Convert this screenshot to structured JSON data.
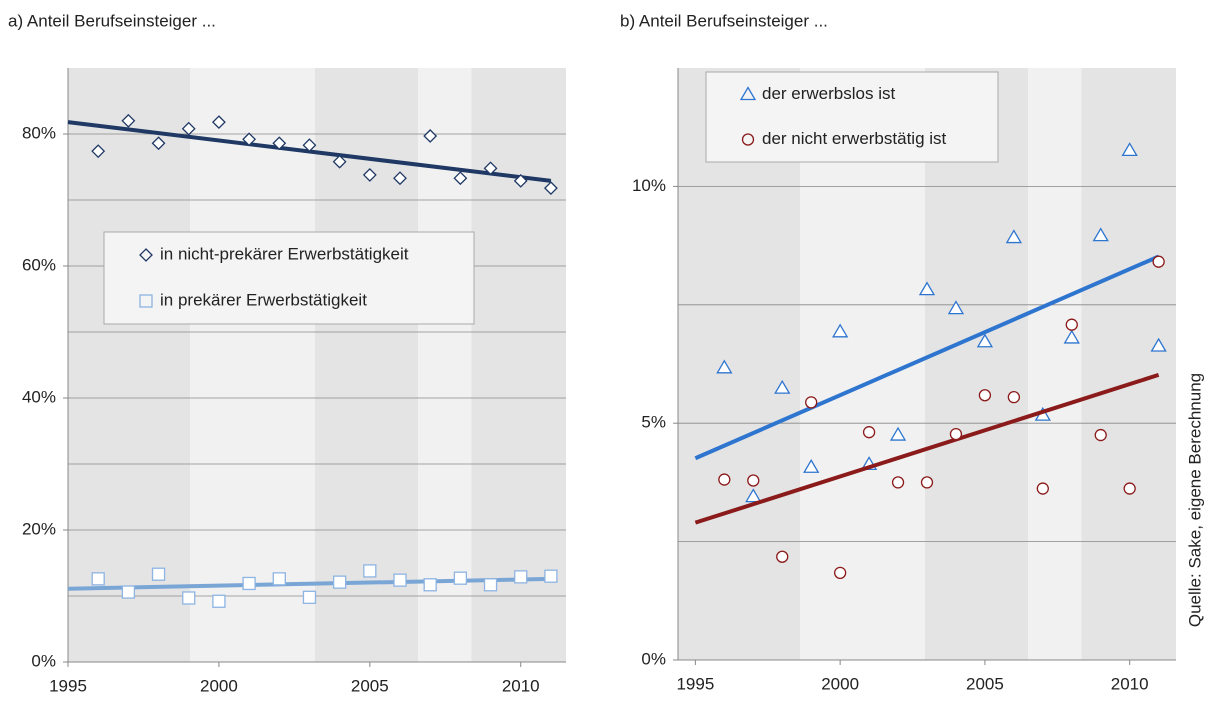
{
  "chart_data": [
    {
      "type": "scatter",
      "title": "a)  Anteil Berufseinsteiger ...",
      "xlim": [
        1995,
        2011.5
      ],
      "xticks": [
        1995,
        2000,
        2005,
        2010
      ],
      "ylim": [
        0,
        90
      ],
      "yticks": [
        {
          "value": 0,
          "label": "0%"
        },
        {
          "value": 20,
          "label": "20%"
        },
        {
          "value": 40,
          "label": "40%"
        },
        {
          "value": 60,
          "label": "60%"
        },
        {
          "value": 80,
          "label": "80%"
        }
      ],
      "minor_grid": [
        10,
        30,
        50,
        70
      ],
      "grid": true,
      "series": [
        {
          "name": "in nicht-prekärer Erwerbstätigkeit",
          "color": "#1f3864",
          "marker": "diamond",
          "x": [
            1996,
            1997,
            1998,
            1999,
            2000,
            2001,
            2002,
            2003,
            2004,
            2005,
            2006,
            2007,
            2008,
            2009,
            2010,
            2011
          ],
          "values": [
            77.4,
            82.0,
            78.6,
            80.8,
            81.8,
            79.2,
            78.6,
            78.3,
            75.8,
            73.8,
            73.3,
            79.7,
            73.3,
            74.8,
            72.9,
            71.8
          ],
          "trend": {
            "x": [
              1995,
              2011
            ],
            "values": [
              81.8,
              72.9
            ]
          }
        },
        {
          "name": "in prekärer Erwerbstätigkeit",
          "color": "#8db4e2",
          "marker": "square",
          "x": [
            1996,
            1997,
            1998,
            1999,
            2000,
            2001,
            2002,
            2003,
            2004,
            2005,
            2006,
            2007,
            2008,
            2009,
            2010,
            2011
          ],
          "values": [
            12.6,
            10.6,
            13.3,
            9.7,
            9.2,
            11.9,
            12.6,
            9.8,
            12.1,
            13.8,
            12.4,
            11.7,
            12.7,
            11.7,
            12.9,
            13.0
          ],
          "trend": {
            "x": [
              1995,
              2011
            ],
            "values": [
              11.1,
              12.6
            ]
          }
        }
      ]
    },
    {
      "type": "scatter",
      "title": "b)  Anteil Berufseinsteiger ...",
      "xlim": [
        1994.4,
        2011.6
      ],
      "xticks": [
        1995,
        2000,
        2005,
        2010
      ],
      "ylim": [
        0,
        12.5
      ],
      "yticks": [
        {
          "value": 0,
          "label": "0%"
        },
        {
          "value": 5,
          "label": "5%"
        },
        {
          "value": 10,
          "label": "10%"
        }
      ],
      "minor_grid": [
        2.5,
        7.5
      ],
      "grid": true,
      "series": [
        {
          "name": "der erwerbslos ist",
          "color": "#2e75d0",
          "marker": "triangle",
          "x": [
            1996,
            1997,
            1998,
            1999,
            2000,
            2001,
            2002,
            2003,
            2004,
            2005,
            2006,
            2007,
            2008,
            2009,
            2010,
            2011
          ],
          "values": [
            6.17,
            3.45,
            5.74,
            4.07,
            6.93,
            4.13,
            4.75,
            7.82,
            7.42,
            6.72,
            8.92,
            5.17,
            6.8,
            8.96,
            10.76,
            6.63
          ],
          "trend": {
            "x": [
              1995,
              2011
            ],
            "values": [
              4.26,
              8.52
            ]
          }
        },
        {
          "name": "der nicht erwerbstätig ist",
          "color": "#8b1a1a",
          "marker": "circle",
          "x": [
            1996,
            1997,
            1998,
            1999,
            2000,
            2001,
            2002,
            2003,
            2004,
            2005,
            2006,
            2007,
            2008,
            2009,
            2010,
            2011
          ],
          "values": [
            3.81,
            3.79,
            2.18,
            5.44,
            1.84,
            4.81,
            3.75,
            3.75,
            4.77,
            5.59,
            5.55,
            3.62,
            7.08,
            4.75,
            3.62,
            8.41
          ],
          "trend": {
            "x": [
              1995,
              2011
            ],
            "values": [
              2.9,
              6.02
            ]
          }
        }
      ]
    }
  ],
  "source": "Quelle: Sake, eigene Berechnung"
}
